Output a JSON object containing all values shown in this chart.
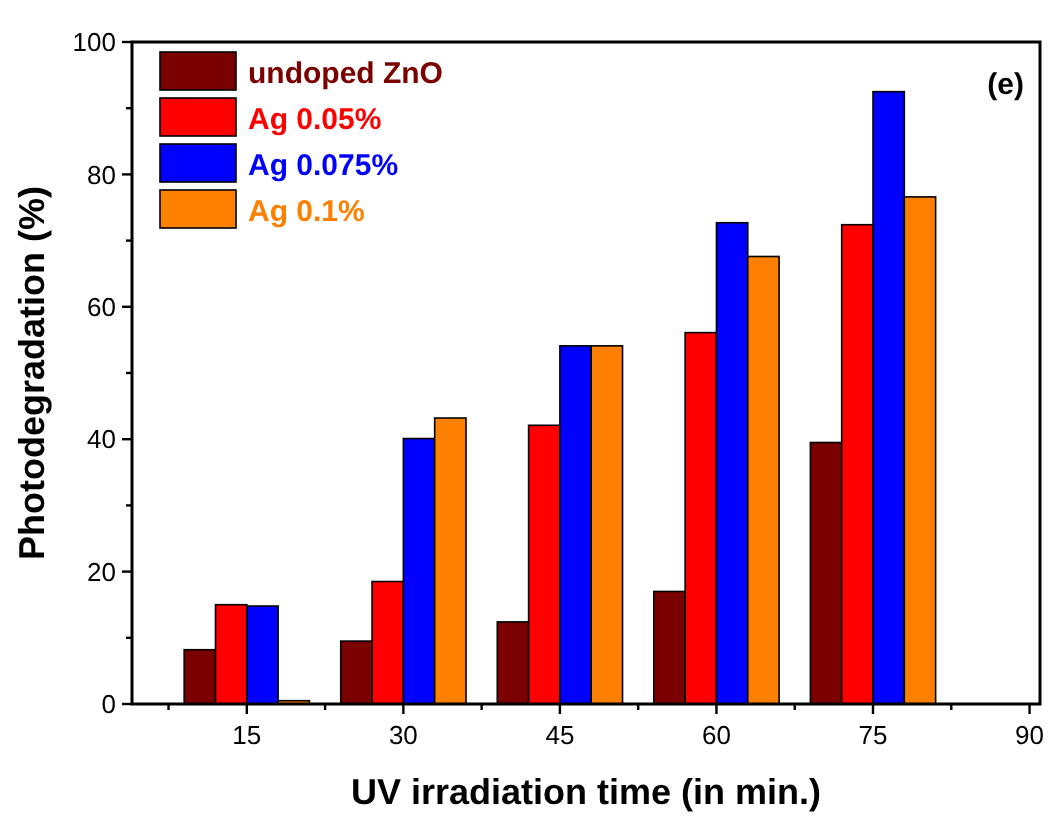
{
  "chart_data": {
    "type": "bar",
    "xlabel": "UV irradiation time (in min.)",
    "ylabel": "Photodegradation (%)",
    "annotations": [
      "(e)"
    ],
    "x": [
      15,
      30,
      45,
      60,
      75
    ],
    "series": [
      {
        "name": "undoped ZnO",
        "color": "#7b0000",
        "values": [
          8.2,
          9.5,
          12.4,
          17,
          39.5
        ]
      },
      {
        "name": "Ag 0.05%",
        "color": "#ff0000",
        "values": [
          15,
          18.5,
          42.1,
          56.1,
          72.4
        ]
      },
      {
        "name": "Ag 0.075%",
        "color": "#0000ff",
        "values": [
          14.8,
          40.1,
          54.1,
          72.7,
          92.5
        ]
      },
      {
        "name": "Ag 0.1%",
        "color": "#ff8000",
        "values": [
          0.5,
          43.2,
          54.1,
          67.6,
          76.6
        ]
      }
    ],
    "xlim": [
      4,
      91
    ],
    "xticks": [
      {
        "value": 7.5,
        "label": null
      },
      15,
      {
        "value": 22.5,
        "label": null
      },
      30,
      {
        "value": 37.5,
        "label": null
      },
      45,
      {
        "value": 52.5,
        "label": null
      },
      60,
      {
        "value": 67.5,
        "label": null
      },
      75,
      {
        "value": 82.5,
        "label": null
      },
      90
    ],
    "ylim": [
      0,
      100
    ],
    "yticks": [
      0,
      {
        "value": 10,
        "label": null
      },
      20,
      {
        "value": 30,
        "label": null
      },
      40,
      {
        "value": 50,
        "label": null
      },
      60,
      {
        "value": 70,
        "label": null
      },
      80,
      {
        "value": 90,
        "label": null
      },
      100
    ],
    "grid": false,
    "legend": "top left"
  }
}
